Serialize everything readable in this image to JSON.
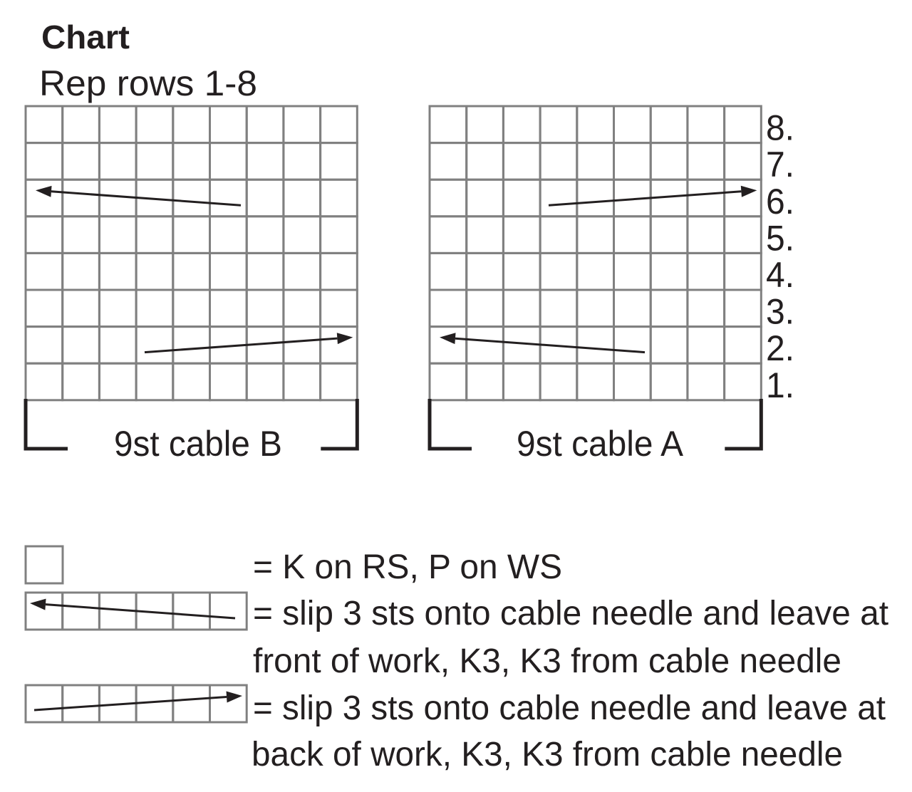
{
  "title": "Chart",
  "subtitle": "Rep rows 1-8",
  "row_labels": [
    "1.",
    "2.",
    "3.",
    "4.",
    "5.",
    "6.",
    "7.",
    "8."
  ],
  "charts": [
    {
      "label": "9st cable B",
      "columns": 9,
      "rows": 8,
      "cables": [
        {
          "row": 6,
          "direction": "left"
        },
        {
          "row": 2,
          "direction": "right"
        }
      ]
    },
    {
      "label": "9st cable A",
      "columns": 9,
      "rows": 8,
      "cables": [
        {
          "row": 6,
          "direction": "right"
        },
        {
          "row": 2,
          "direction": "left"
        }
      ]
    }
  ],
  "legend": [
    {
      "symbol": "empty-square",
      "lines": [
        "= K on RS, P on WS"
      ]
    },
    {
      "symbol": "cable-left-arrow",
      "lines": [
        "= slip 3 sts onto cable needle and leave at",
        "front of work, K3, K3 from cable needle"
      ]
    },
    {
      "symbol": "cable-right-arrow",
      "lines": [
        "= slip 3 sts onto cable needle and leave at",
        "back of work, K3, K3 from cable needle"
      ]
    }
  ],
  "colors": {
    "grid": "#808080",
    "ink": "#231f20"
  }
}
